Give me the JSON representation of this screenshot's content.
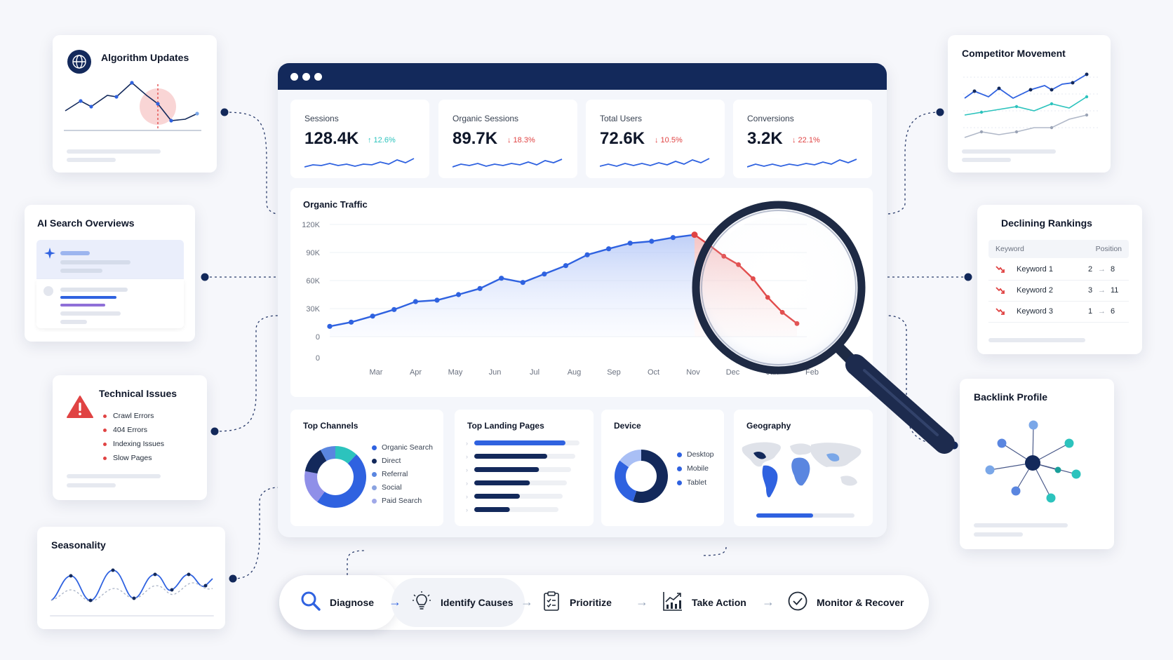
{
  "colors": {
    "navy": "#13295b",
    "blue": "#2f62e0",
    "teal": "#2cc3bd",
    "red": "#e04343",
    "lavender": "#8f8fe8",
    "gray": "#e6e9f0"
  },
  "algorithm_updates": {
    "title": "Algorithm Updates",
    "icon": "globe-icon"
  },
  "ai_overviews": {
    "title": "AI Search Overviews",
    "icon": "sparkle-icon"
  },
  "technical_issues": {
    "title": "Technical Issues",
    "icon": "warning-icon",
    "items": [
      "Crawl Errors",
      "404 Errors",
      "Indexing Issues",
      "Slow Pages"
    ]
  },
  "seasonality": {
    "title": "Seasonality"
  },
  "competitor_movement": {
    "title": "Competitor Movement"
  },
  "declining_rankings": {
    "title": "Declining Rankings",
    "columns": [
      "Keyword",
      "Position"
    ],
    "rows": [
      {
        "keyword": "Keyword 1",
        "from": "2",
        "arrow": "→",
        "to": "8"
      },
      {
        "keyword": "Keyword 2",
        "from": "3",
        "arrow": "→",
        "to": "11"
      },
      {
        "keyword": "Keyword 3",
        "from": "1",
        "arrow": "→",
        "to": "6"
      }
    ]
  },
  "backlink_profile": {
    "title": "Backlink Profile"
  },
  "kpis": [
    {
      "label": "Sessions",
      "value": "128.4K",
      "change": "↑ 12.6%",
      "direction": "up"
    },
    {
      "label": "Organic Sessions",
      "value": "89.7K",
      "change": "↓ 18.3%",
      "direction": "down"
    },
    {
      "label": "Total Users",
      "value": "72.6K",
      "change": "↓ 10.5%",
      "direction": "down"
    },
    {
      "label": "Conversions",
      "value": "3.2K",
      "change": "↓ 22.1%",
      "direction": "down"
    }
  ],
  "organic_traffic": {
    "title": "Organic Traffic",
    "chart_data": {
      "type": "area",
      "title": "Organic Traffic",
      "y_ticks": [
        "120K",
        "90K",
        "60K",
        "30K",
        "0",
        "0"
      ],
      "x_ticks": [
        "Mar",
        "Apr",
        "May",
        "Jun",
        "Jul",
        "Aug",
        "Sep",
        "Oct",
        "Nov",
        "Dec",
        "Jan",
        "Feb"
      ],
      "ylim": [
        0,
        120000
      ],
      "grid": true,
      "series": [
        {
          "values": [
            11000,
            15500,
            22000,
            29000,
            37500,
            39000,
            45000,
            51500,
            62500,
            58000,
            67000,
            76000,
            87500,
            94000,
            100000,
            102000,
            106000,
            109000
          ],
          "color": "#2f62e0"
        },
        {
          "values": [
            109000,
            98000,
            86000,
            77000,
            62000,
            42000,
            26000,
            14000
          ],
          "color": "#e04343"
        }
      ]
    }
  },
  "top_channels": {
    "title": "Top Channels",
    "legend": [
      "Organic Search",
      "Direct",
      "Referral",
      "Social",
      "Paid Search"
    ],
    "chart_data": {
      "type": "pie",
      "categories": [
        "Organic Search",
        "Direct",
        "Referral",
        "Social",
        "Paid Search"
      ],
      "values": [
        12,
        48,
        18,
        14,
        8
      ]
    }
  },
  "top_landing_pages": {
    "title": "Top Landing Pages",
    "chart_data": {
      "type": "bar",
      "orientation": "horizontal",
      "values": [
        100,
        80,
        71,
        61,
        50,
        39
      ]
    }
  },
  "device": {
    "title": "Device",
    "legend": [
      "Desktop",
      "Mobile",
      "Tablet"
    ],
    "chart_data": {
      "type": "pie",
      "categories": [
        "Desktop",
        "Mobile",
        "Tablet"
      ],
      "values": [
        55,
        30,
        15
      ]
    }
  },
  "geography": {
    "title": "Geography"
  },
  "workflow": {
    "steps": [
      {
        "label": "Diagnose",
        "icon": "search-icon"
      },
      {
        "label": "Identify Causes",
        "icon": "lightbulb-icon"
      },
      {
        "label": "Prioritize",
        "icon": "clipboard-icon"
      },
      {
        "label": "Take Action",
        "icon": "growth-chart-icon"
      },
      {
        "label": "Monitor & Recover",
        "icon": "check-circle-icon"
      }
    ],
    "arrow": "→"
  }
}
